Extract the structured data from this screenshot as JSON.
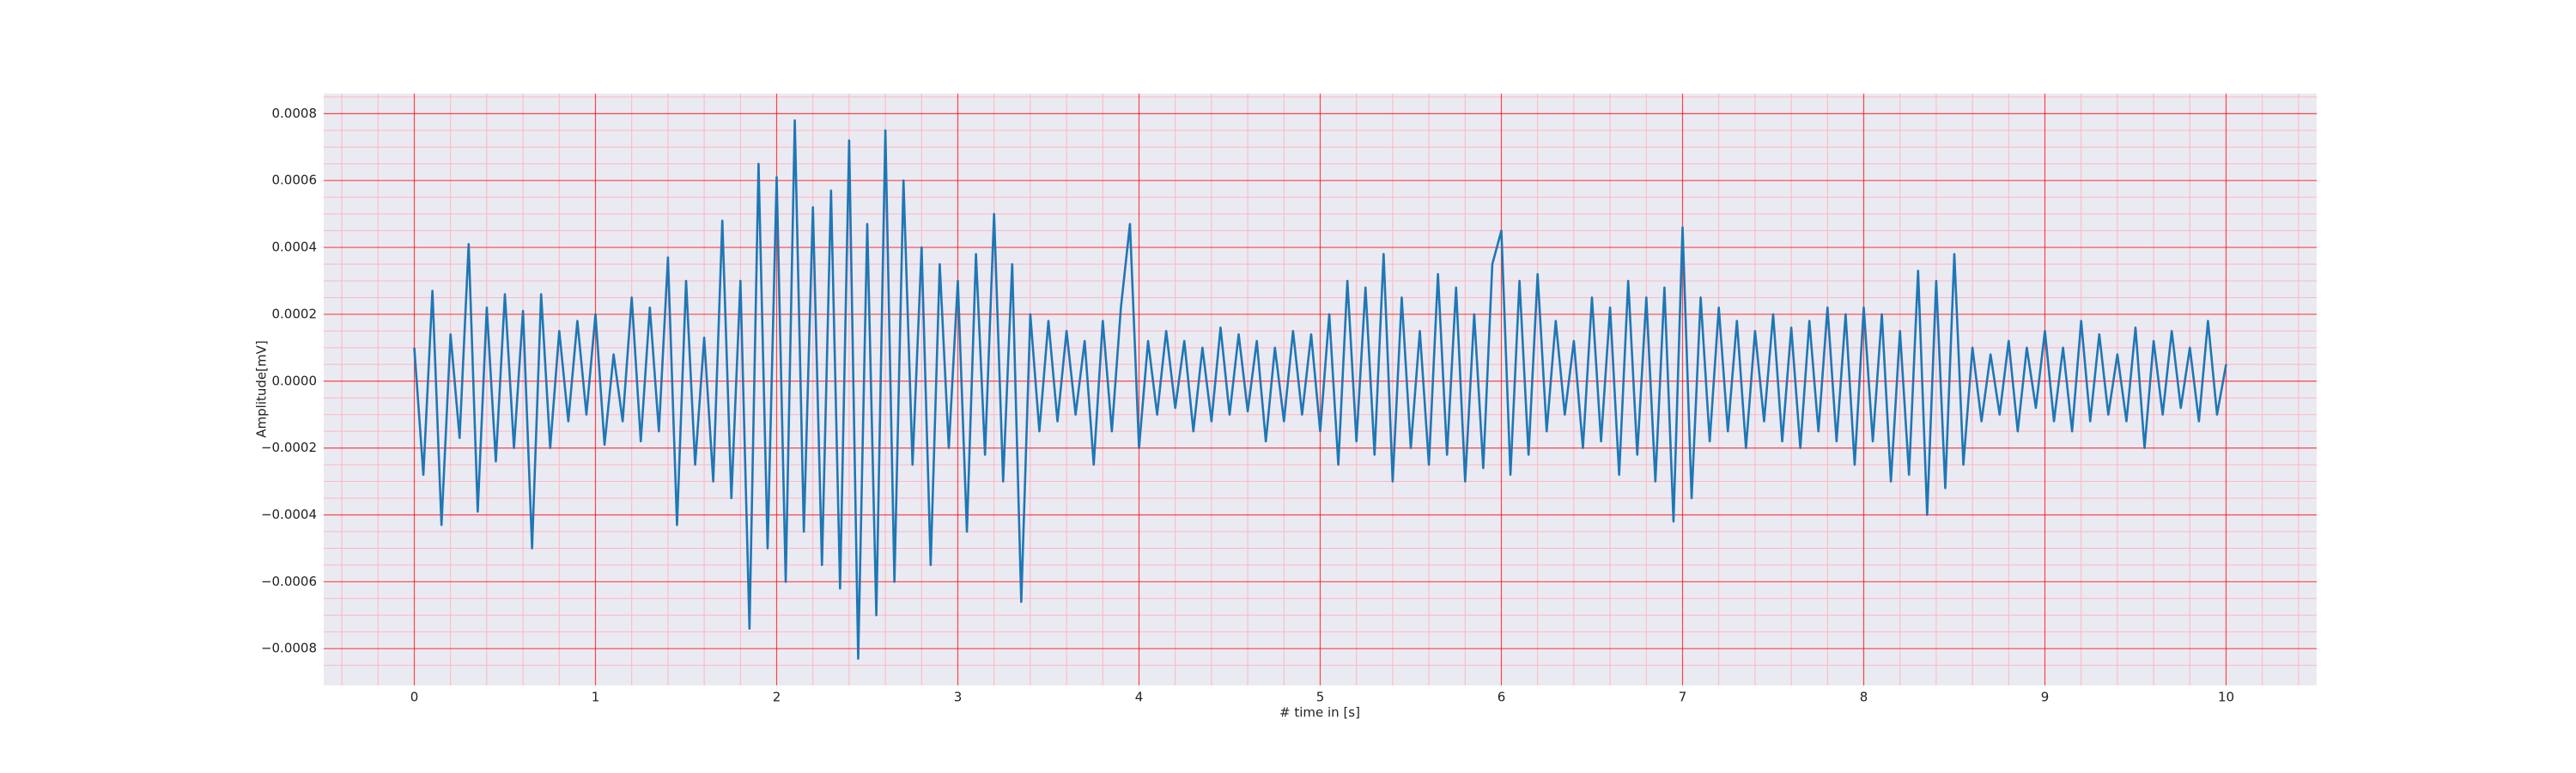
{
  "chart_data": {
    "type": "line",
    "xlabel": "# time in [s]",
    "ylabel": "Amplitude[mV]",
    "xlim": [
      -0.5,
      10.5
    ],
    "ylim": [
      -0.00091,
      0.00086
    ],
    "xticks": [
      0,
      1,
      2,
      3,
      4,
      5,
      6,
      7,
      8,
      9,
      10
    ],
    "yticks": [
      {
        "value": -0.0008,
        "label": "−0.0008"
      },
      {
        "value": -0.0006,
        "label": "−0.0006"
      },
      {
        "value": -0.0004,
        "label": "−0.0004"
      },
      {
        "value": -0.0002,
        "label": "−0.0002"
      },
      {
        "value": 0,
        "label": "0.0000"
      },
      {
        "value": 0.0002,
        "label": "0.0002"
      },
      {
        "value": 0.0004,
        "label": "0.0004"
      },
      {
        "value": 0.0006,
        "label": "0.0006"
      },
      {
        "value": 0.0008,
        "label": "0.0008"
      }
    ],
    "xminorticks": [
      -0.4,
      -0.2,
      0.2,
      0.4,
      0.6,
      0.8,
      1.2,
      1.4,
      1.6,
      1.8,
      2.2,
      2.4,
      2.6,
      2.8,
      3.2,
      3.4,
      3.6,
      3.8,
      4.2,
      4.4,
      4.6,
      4.8,
      5.2,
      5.4,
      5.6,
      5.8,
      6.2,
      6.4,
      6.6,
      6.8,
      7.2,
      7.4,
      7.6,
      7.8,
      8.2,
      8.4,
      8.6,
      8.8,
      9.2,
      9.4,
      9.6,
      9.8,
      10.2,
      10.4
    ],
    "yminorticks": [
      -0.00085,
      -0.00075,
      -0.0007,
      -0.00065,
      -0.00055,
      -0.0005,
      -0.00045,
      -0.00035,
      -0.0003,
      -0.00025,
      -0.00015,
      -0.0001,
      -5e-05,
      5e-05,
      0.0001,
      0.00015,
      0.00025,
      0.0003,
      0.00035,
      0.00045,
      0.0005,
      0.00055,
      0.00065,
      0.0007,
      0.00075,
      0.00085
    ],
    "grid": true,
    "major_grid_color": "#ff0000",
    "minor_grid_color": "#ffb6c1",
    "background": "#eaeaf2",
    "series": [
      {
        "color": "#1f77b4",
        "x": [
          0,
          0.05,
          0.1,
          0.15,
          0.2,
          0.25,
          0.3,
          0.35,
          0.4,
          0.45,
          0.5,
          0.55,
          0.6,
          0.65,
          0.7,
          0.75,
          0.8,
          0.85,
          0.9,
          0.95,
          1,
          1.05,
          1.1,
          1.15,
          1.2,
          1.25,
          1.3,
          1.35,
          1.4,
          1.45,
          1.5,
          1.55,
          1.6,
          1.65,
          1.7,
          1.75,
          1.8,
          1.85,
          1.9,
          1.95,
          2,
          2.05,
          2.1,
          2.15,
          2.2,
          2.25,
          2.3,
          2.35,
          2.4,
          2.45,
          2.5,
          2.55,
          2.6,
          2.65,
          2.7,
          2.75,
          2.8,
          2.85,
          2.9,
          2.95,
          3,
          3.05,
          3.1,
          3.15,
          3.2,
          3.25,
          3.3,
          3.35,
          3.4,
          3.45,
          3.5,
          3.55,
          3.6,
          3.65,
          3.7,
          3.75,
          3.8,
          3.85,
          3.9,
          3.95,
          4,
          4.05,
          4.1,
          4.15,
          4.2,
          4.25,
          4.3,
          4.35,
          4.4,
          4.45,
          4.5,
          4.55,
          4.6,
          4.65,
          4.7,
          4.75,
          4.8,
          4.85,
          4.9,
          4.95,
          5,
          5.05,
          5.1,
          5.15,
          5.2,
          5.25,
          5.3,
          5.35,
          5.4,
          5.45,
          5.5,
          5.55,
          5.6,
          5.65,
          5.7,
          5.75,
          5.8,
          5.85,
          5.9,
          5.95,
          6,
          6.05,
          6.1,
          6.15,
          6.2,
          6.25,
          6.3,
          6.35,
          6.4,
          6.45,
          6.5,
          6.55,
          6.6,
          6.65,
          6.7,
          6.75,
          6.8,
          6.85,
          6.9,
          6.95,
          7,
          7.05,
          7.1,
          7.15,
          7.2,
          7.25,
          7.3,
          7.35,
          7.4,
          7.45,
          7.5,
          7.55,
          7.6,
          7.65,
          7.7,
          7.75,
          7.8,
          7.85,
          7.9,
          7.95,
          8,
          8.05,
          8.1,
          8.15,
          8.2,
          8.25,
          8.3,
          8.35,
          8.4,
          8.45,
          8.5,
          8.55,
          8.6,
          8.65,
          8.7,
          8.75,
          8.8,
          8.85,
          8.9,
          8.95,
          9,
          9.05,
          9.1,
          9.15,
          9.2,
          9.25,
          9.3,
          9.35,
          9.4,
          9.45,
          9.5,
          9.55,
          9.6,
          9.65,
          9.7,
          9.75,
          9.8,
          9.85,
          9.9,
          9.95,
          10
        ],
        "values": [
          0.0001,
          -0.00028,
          0.00027,
          -0.00043,
          0.00014,
          -0.00017,
          0.00041,
          -0.00039,
          0.00022,
          -0.00024,
          0.00026,
          -0.0002,
          0.00021,
          -0.0005,
          0.00026,
          -0.0002,
          0.00015,
          -0.00012,
          0.00018,
          -0.0001,
          0.0002,
          -0.00019,
          8e-05,
          -0.00012,
          0.00025,
          -0.00018,
          0.00022,
          -0.00015,
          0.00037,
          -0.00043,
          0.0003,
          -0.00025,
          0.00013,
          -0.0003,
          0.00048,
          -0.00035,
          0.0003,
          -0.00074,
          0.00065,
          -0.0005,
          0.00061,
          -0.0006,
          0.00078,
          -0.00045,
          0.00052,
          -0.00055,
          0.00057,
          -0.00062,
          0.00072,
          -0.00083,
          0.00047,
          -0.0007,
          0.00075,
          -0.0006,
          0.0006,
          -0.00025,
          0.0004,
          -0.00055,
          0.00035,
          -0.0002,
          0.0003,
          -0.00045,
          0.00038,
          -0.00022,
          0.0005,
          -0.0003,
          0.00035,
          -0.00066,
          0.0002,
          -0.00015,
          0.00018,
          -0.00012,
          0.00015,
          -0.0001,
          0.00012,
          -0.00025,
          0.00018,
          -0.00015,
          0.00022,
          0.00047,
          -0.0002,
          0.00012,
          -0.0001,
          0.00015,
          -8e-05,
          0.00012,
          -0.00015,
          0.0001,
          -0.00012,
          0.00016,
          -0.0001,
          0.00014,
          -9e-05,
          0.00012,
          -0.00018,
          0.0001,
          -0.00012,
          0.00015,
          -0.0001,
          0.00014,
          -0.00015,
          0.0002,
          -0.00025,
          0.0003,
          -0.00018,
          0.00028,
          -0.00022,
          0.00038,
          -0.0003,
          0.00025,
          -0.0002,
          0.00015,
          -0.00025,
          0.00032,
          -0.00022,
          0.00028,
          -0.0003,
          0.0002,
          -0.00026,
          0.00035,
          0.00045,
          -0.00028,
          0.0003,
          -0.00022,
          0.00032,
          -0.00015,
          0.00018,
          -0.0001,
          0.00012,
          -0.0002,
          0.00025,
          -0.00018,
          0.00022,
          -0.00028,
          0.0003,
          -0.00022,
          0.00025,
          -0.0003,
          0.00028,
          -0.00042,
          0.00046,
          -0.00035,
          0.00025,
          -0.00018,
          0.00022,
          -0.00015,
          0.00018,
          -0.0002,
          0.00015,
          -0.00012,
          0.0002,
          -0.00018,
          0.00016,
          -0.0002,
          0.00018,
          -0.00015,
          0.00022,
          -0.00018,
          0.0002,
          -0.00025,
          0.00022,
          -0.00018,
          0.0002,
          -0.0003,
          0.00015,
          -0.00028,
          0.00033,
          -0.0004,
          0.0003,
          -0.00032,
          0.00038,
          -0.00025,
          0.0001,
          -0.00012,
          8e-05,
          -0.0001,
          0.00012,
          -0.00015,
          0.0001,
          -8e-05,
          0.00015,
          -0.00012,
          0.0001,
          -0.00015,
          0.00018,
          -0.00012,
          0.00014,
          -0.0001,
          8e-05,
          -0.00012,
          0.00016,
          -0.0002,
          0.00012,
          -0.0001,
          0.00015,
          -8e-05,
          0.0001,
          -0.00012,
          0.00018,
          -0.0001,
          5e-05
        ]
      }
    ]
  }
}
